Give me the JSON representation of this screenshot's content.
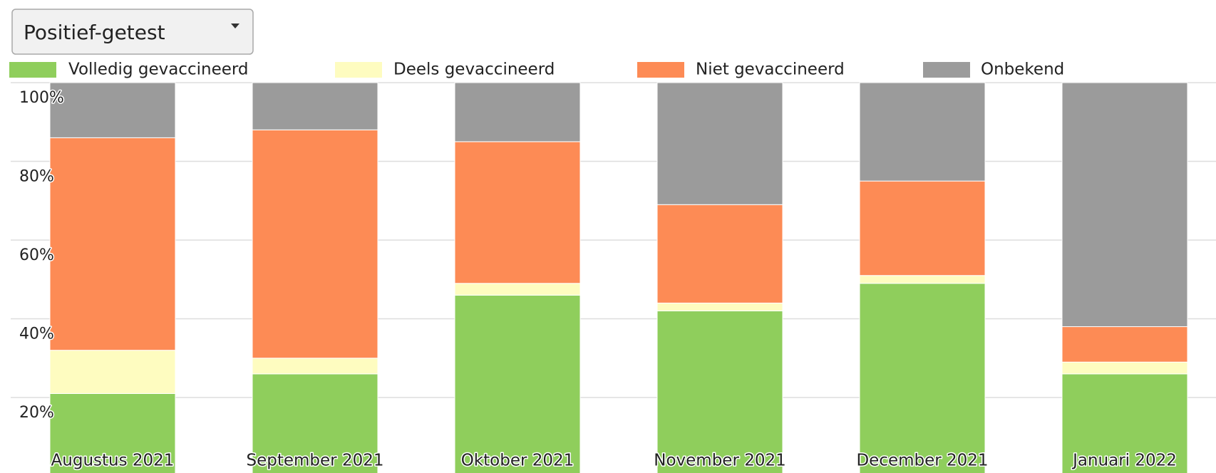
{
  "dropdown": {
    "label": "Positief-getest"
  },
  "chart_data": {
    "type": "stacked-bar",
    "categories": [
      "Augustus 2021",
      "September 2021",
      "Oktober 2021",
      "November 2021",
      "December 2021",
      "Januari 2022"
    ],
    "series": [
      {
        "name": "Volledig gevaccineerd",
        "color": "#8fce5c",
        "values": [
          21,
          26,
          46,
          42,
          49,
          26
        ]
      },
      {
        "name": "Deels gevaccineerd",
        "color": "#fefcc0",
        "values": [
          11,
          4,
          3,
          2,
          2,
          3
        ]
      },
      {
        "name": "Niet gevaccineerd",
        "color": "#fd8b55",
        "values": [
          54,
          58,
          36,
          25,
          24,
          9
        ]
      },
      {
        "name": "Onbekend",
        "color": "#9b9b9b",
        "values": [
          14,
          12,
          15,
          31,
          25,
          62
        ]
      }
    ],
    "ylim": [
      0,
      100
    ],
    "yticks": [
      {
        "value": 20,
        "label": "20%"
      },
      {
        "value": 40,
        "label": "40%"
      },
      {
        "value": 60,
        "label": "60%"
      },
      {
        "value": 80,
        "label": "80%"
      },
      {
        "value": 100,
        "label": "100%"
      }
    ],
    "grid": true,
    "legend": "top"
  }
}
